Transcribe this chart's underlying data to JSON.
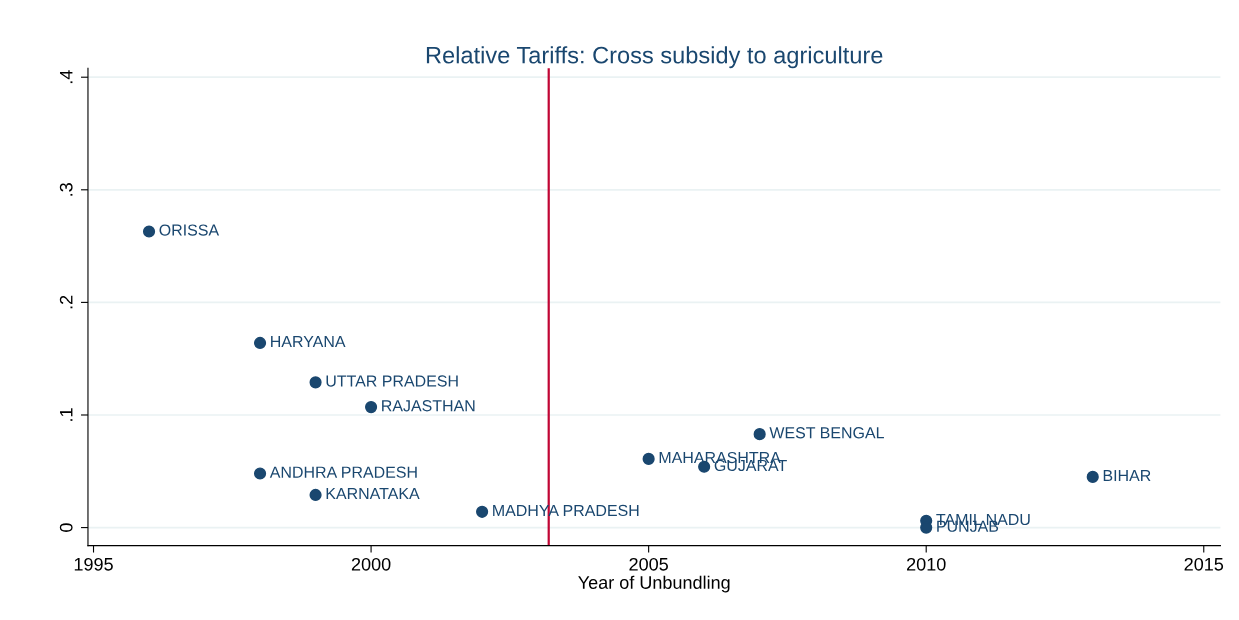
{
  "chart_data": {
    "type": "scatter",
    "title": "Relative Tariffs: Cross subsidy to agriculture",
    "xlabel": "Year of Unbundling",
    "x": [
      1996,
      1998,
      1999,
      2000,
      1998,
      1999,
      2002,
      2005,
      2006,
      2007,
      2013,
      2010,
      2010
    ],
    "series": [
      {
        "color": "#1a476f",
        "values": [
          0.263,
          0.164,
          0.129,
          0.107,
          0.048,
          0.029,
          0.014,
          0.061,
          0.054,
          0.083,
          0.045,
          0.006,
          0.0
        ]
      }
    ],
    "annotations": [
      {
        "text": "ORISSA",
        "x": 1996,
        "y": 0.263
      },
      {
        "text": "HARYANA",
        "x": 1998,
        "y": 0.164
      },
      {
        "text": "UTTAR PRADESH",
        "x": 1999,
        "y": 0.129
      },
      {
        "text": "RAJASTHAN",
        "x": 2000,
        "y": 0.107
      },
      {
        "text": "ANDHRA PRADESH",
        "x": 1998,
        "y": 0.048
      },
      {
        "text": "KARNATAKA",
        "x": 1999,
        "y": 0.029
      },
      {
        "text": "MADHYA PRADESH",
        "x": 2002,
        "y": 0.014
      },
      {
        "text": "MAHARASHTRA",
        "x": 2005,
        "y": 0.061
      },
      {
        "text": "GUJARAT",
        "x": 2006,
        "y": 0.054
      },
      {
        "text": "WEST BENGAL",
        "x": 2007,
        "y": 0.083
      },
      {
        "text": "BIHAR",
        "x": 2013,
        "y": 0.045
      },
      {
        "text": "TAMIL NADU",
        "x": 2010,
        "y": 0.006
      },
      {
        "text": "PUNJAB",
        "x": 2010,
        "y": 0.0
      }
    ],
    "ref_lines": [
      {
        "axis": "x",
        "value": 2003.2,
        "color": "#c10534"
      }
    ],
    "xlim": [
      1994.9,
      2015.3
    ],
    "xticks": [
      1995,
      2000,
      2005,
      2010,
      2015
    ],
    "ylim": [
      -0.016,
      0.408
    ],
    "yticks": [
      0,
      {
        "value": 0.1,
        "label": ".1"
      },
      {
        "value": 0.2,
        "label": ".2"
      },
      {
        "value": 0.3,
        "label": ".3"
      },
      {
        "value": 0.4,
        "label": ".4"
      }
    ],
    "grid": "y",
    "marker": "circle"
  }
}
